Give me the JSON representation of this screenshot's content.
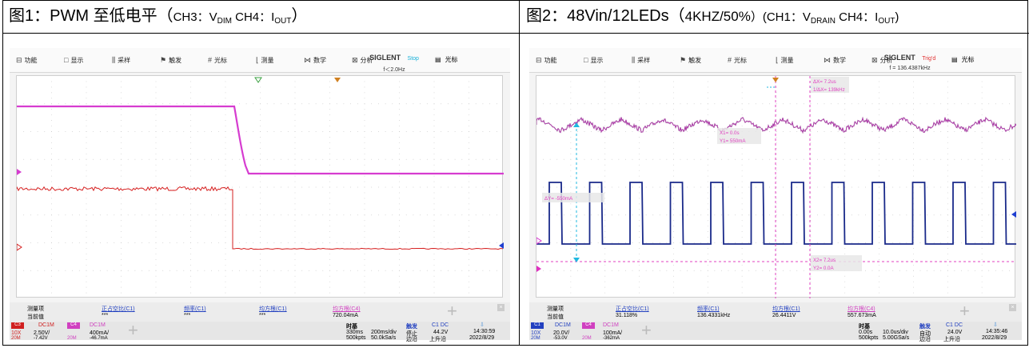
{
  "figure1": {
    "caption": {
      "a": "图1：",
      "b": "PWM",
      "c": " 至低电平（",
      "d": "CH3：V",
      "e": "DIM",
      "f": "  CH4：I",
      "g": "OUT",
      "h": "）"
    },
    "menu": [
      "功能",
      "显示",
      "采样",
      "触发",
      "光标",
      "测量",
      "数学",
      "分析"
    ],
    "menu_icons": [
      "function-icon",
      "display-icon",
      "acquire-icon",
      "trigger-icon",
      "cursor-icon",
      "measure-icon",
      "math-icon",
      "analysis-icon"
    ],
    "brand": "SIGLENT",
    "status": "Stop",
    "freq": "f＜2.0Hz",
    "cursor_tab": "光标",
    "meas": {
      "h0": "测量项",
      "h1": "正占空比(C1)",
      "h2": "频率(C1)",
      "h3": "均方根(C1)",
      "h4": "均方根(C4)",
      "r0": "当前值",
      "r1": "***",
      "r2": "***",
      "r3": "***",
      "r4": "720.04mA"
    },
    "ch_a": {
      "tag": "C3",
      "coup": "DC1M",
      "scale": "2.50V/",
      "probe": "10X",
      "bw": "20M",
      "offset": "-7.42V"
    },
    "ch_b": {
      "tag": "C4",
      "coup": "DC1M",
      "scale": "400mA/",
      "bw": "20M",
      "offset": "-46.7mA"
    },
    "timebase": {
      "label": "时基",
      "pos": "330ms",
      "div": "200ms/div",
      "pts": "500kpts",
      "rate": "50.0kSa/s"
    },
    "trigger": {
      "label": "触发",
      "mode": "停止",
      "type": "边沿",
      "src": "C1 DC",
      "level": "44.2V",
      "slope": "上升沿"
    },
    "clock": {
      "time": "14:30:59",
      "date": "2022/8/29"
    }
  },
  "figure2": {
    "caption": {
      "a": "图2：",
      "b": "48Vin/12LEDs",
      "c": "（",
      "d": "4KHZ/50%",
      "e": "）(CH1：V",
      "f": "DRAIN",
      "g": "  CH4：I",
      "h": "OUT",
      "i": ")"
    },
    "menu": [
      "功能",
      "显示",
      "采样",
      "触发",
      "光标",
      "测量",
      "数学",
      "分析"
    ],
    "menu_icons": [
      "function-icon",
      "display-icon",
      "acquire-icon",
      "trigger-icon",
      "cursor-icon",
      "measure-icon",
      "math-icon",
      "analysis-icon"
    ],
    "brand": "SIGLENT",
    "status": "Trig'd",
    "freq": "f = 136.4387kHz",
    "cursor_tab": "光标",
    "cursor_dx": "ΔX= 7.2us",
    "cursor_inv": "1/ΔX= 139kHz",
    "cursor_x1": "X1= 0.0s",
    "cursor_y1": "Y1= 550mA",
    "cursor_dy": "ΔY= -550mA",
    "cursor_x2": "X2= 7.2us",
    "cursor_y2": "Y2= 0.0A",
    "meas": {
      "h0": "测量项",
      "h1": "正占空比(C1)",
      "h2": "频率(C1)",
      "h3": "均方根(C1)",
      "h4": "均方根(C4)",
      "r0": "当前值",
      "r1": "31.118%",
      "r2": "136.4331kHz",
      "r3": "26.4411V",
      "r4": "557.673mA"
    },
    "ch_a": {
      "tag": "C1",
      "coup": "DC1M",
      "scale": "20.0V/",
      "probe": "10X",
      "bw": "20M",
      "offset": "-53.0V"
    },
    "ch_b": {
      "tag": "C4",
      "coup": "DC1M",
      "scale": "100mA/",
      "bw": "20M",
      "offset": "-362mA"
    },
    "timebase": {
      "label": "时基",
      "pos": "0.00s",
      "div": "10.0us/div",
      "pts": "500kpts",
      "rate": "5.00GSa/s"
    },
    "trigger": {
      "label": "触发",
      "mode": "自动",
      "type": "边沿",
      "src": "C1 DC",
      "level": "24.0V",
      "slope": "上升沿"
    },
    "clock": {
      "time": "14:35:46",
      "date": "2022/8/29"
    }
  },
  "colors": {
    "pink": "#d63cd0",
    "red": "#d62020",
    "blue": "#1a2a8a",
    "cyan": "#20b8e0",
    "orange": "#d08020",
    "magenta_cursor": "#e040c0"
  }
}
